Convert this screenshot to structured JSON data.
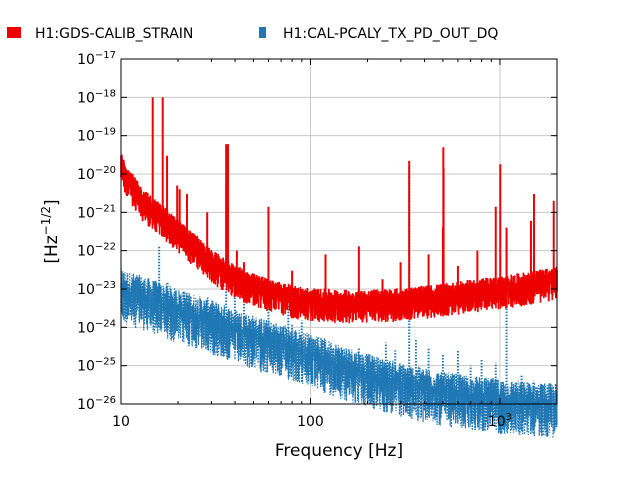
{
  "chart_data": {
    "type": "line",
    "title": "",
    "xlabel": "Frequency [Hz]",
    "ylabel": "[Hz⁻¹ᐟ²]",
    "ylabel_base": "[Hz",
    "ylabel_exp": "−1/2",
    "ylabel_close": "]",
    "x_scale": "log",
    "y_scale": "log",
    "xlim": [
      10,
      2000
    ],
    "ylim": [
      1e-26,
      1e-17
    ],
    "grid": true,
    "legend_position": "top",
    "x_ticks": [
      {
        "base": "10",
        "exp": "",
        "value": 10
      },
      {
        "base": "100",
        "exp": "",
        "value": 100
      },
      {
        "base": "10",
        "exp": "3",
        "value": 1000
      }
    ],
    "y_ticks": [
      {
        "base": "10",
        "exp": "−17",
        "value": 1e-17
      },
      {
        "base": "10",
        "exp": "−18",
        "value": 1e-18
      },
      {
        "base": "10",
        "exp": "−19",
        "value": 1e-19
      },
      {
        "base": "10",
        "exp": "−20",
        "value": 1e-20
      },
      {
        "base": "10",
        "exp": "−21",
        "value": 1e-21
      },
      {
        "base": "10",
        "exp": "−22",
        "value": 1e-22
      },
      {
        "base": "10",
        "exp": "−23",
        "value": 1e-23
      },
      {
        "base": "10",
        "exp": "−24",
        "value": 1e-24
      },
      {
        "base": "10",
        "exp": "−25",
        "value": 1e-25
      },
      {
        "base": "10",
        "exp": "−26",
        "value": 1e-26
      }
    ],
    "series": [
      {
        "name": "H1:GDS-CALIB_STRAIN",
        "color": "#ee0000",
        "style": "solid",
        "baseline": [
          [
            10,
            1.8e-20
          ],
          [
            11,
            7e-21
          ],
          [
            12,
            3.5e-21
          ],
          [
            13,
            2e-21
          ],
          [
            15,
            1.1e-21
          ],
          [
            18,
            5e-22
          ],
          [
            20,
            3e-22
          ],
          [
            25,
            1.2e-22
          ],
          [
            30,
            5e-23
          ],
          [
            40,
            2e-23
          ],
          [
            50,
            1.2e-23
          ],
          [
            60,
            9e-24
          ],
          [
            80,
            6e-24
          ],
          [
            100,
            5e-24
          ],
          [
            150,
            4.5e-24
          ],
          [
            200,
            4.5e-24
          ],
          [
            300,
            5e-24
          ],
          [
            500,
            6.5e-24
          ],
          [
            800,
            9e-24
          ],
          [
            1000,
            1e-23
          ],
          [
            1500,
            1.4e-23
          ],
          [
            2000,
            1.8e-23
          ]
        ],
        "peaks": [
          [
            14.7,
            1e-18
          ],
          [
            16.6,
            1e-18
          ],
          [
            17.5,
            3e-20
          ],
          [
            19.8,
            5e-21
          ],
          [
            20.4,
            4e-21
          ],
          [
            22.3,
            3e-21
          ],
          [
            28.5,
            1e-21
          ],
          [
            35.9,
            6e-20
          ],
          [
            36.7,
            6e-20
          ],
          [
            40.9,
            1e-22
          ],
          [
            44.6,
            5e-23
          ],
          [
            60.0,
            1.4e-21
          ],
          [
            80.0,
            3e-23
          ],
          [
            120,
            8e-23
          ],
          [
            180,
            1.3e-22
          ],
          [
            240,
            1.8e-23
          ],
          [
            299,
            5e-23
          ],
          [
            331.9,
            2.2e-20
          ],
          [
            420,
            8e-23
          ],
          [
            500,
            4e-22
          ],
          [
            502.6,
            5e-20
          ],
          [
            504,
            1.4e-20
          ],
          [
            600,
            4e-23
          ],
          [
            760,
            1e-22
          ],
          [
            950,
            1.4e-21
          ],
          [
            1003.5,
            1.8e-20
          ],
          [
            1083.7,
            4e-22
          ],
          [
            1457,
            6e-22
          ],
          [
            1512,
            3e-21
          ],
          [
            1922,
            2e-21
          ]
        ]
      },
      {
        "name": "H1:CAL-PCALY_TX_PD_OUT_DQ",
        "color": "#1f77b4",
        "style": "dotted",
        "baseline": [
          [
            10,
            1e-23
          ],
          [
            15,
            5e-24
          ],
          [
            20,
            3e-24
          ],
          [
            30,
            1.5e-24
          ],
          [
            50,
            6e-25
          ],
          [
            80,
            3e-25
          ],
          [
            100,
            2e-25
          ],
          [
            150,
            1e-25
          ],
          [
            200,
            6e-26
          ],
          [
            300,
            3.5e-26
          ],
          [
            500,
            2e-26
          ],
          [
            700,
            1.6e-26
          ],
          [
            1000,
            1.3e-26
          ],
          [
            2000,
            1e-26
          ]
        ],
        "peaks": [
          [
            15.9,
            1.3e-22
          ],
          [
            17.6,
            1.5e-23
          ],
          [
            22.2,
            8e-24
          ],
          [
            26.4,
            5e-24
          ],
          [
            28.7,
            6e-24
          ],
          [
            35.9,
            5e-21
          ],
          [
            39.9,
            7e-24
          ],
          [
            44.6,
            5e-24
          ],
          [
            60.0,
            4e-24
          ],
          [
            76.4,
            4e-24
          ],
          [
            80,
            1.2e-24
          ],
          [
            90,
            1.5e-24
          ],
          [
            110,
            6e-25
          ],
          [
            180,
            3e-25
          ],
          [
            250,
            4e-25
          ],
          [
            280,
            2.5e-25
          ],
          [
            331.9,
            1.5e-20
          ],
          [
            360,
            5e-25
          ],
          [
            420,
            3e-25
          ],
          [
            500,
            2e-25
          ],
          [
            600,
            2.5e-25
          ],
          [
            700,
            1e-25
          ],
          [
            800,
            1.5e-25
          ],
          [
            950,
            1.2e-25
          ],
          [
            1083.7,
            2.5e-22
          ],
          [
            1300,
            6e-26
          ],
          [
            1500,
            4e-26
          ],
          [
            1700,
            3e-26
          ]
        ]
      }
    ]
  }
}
